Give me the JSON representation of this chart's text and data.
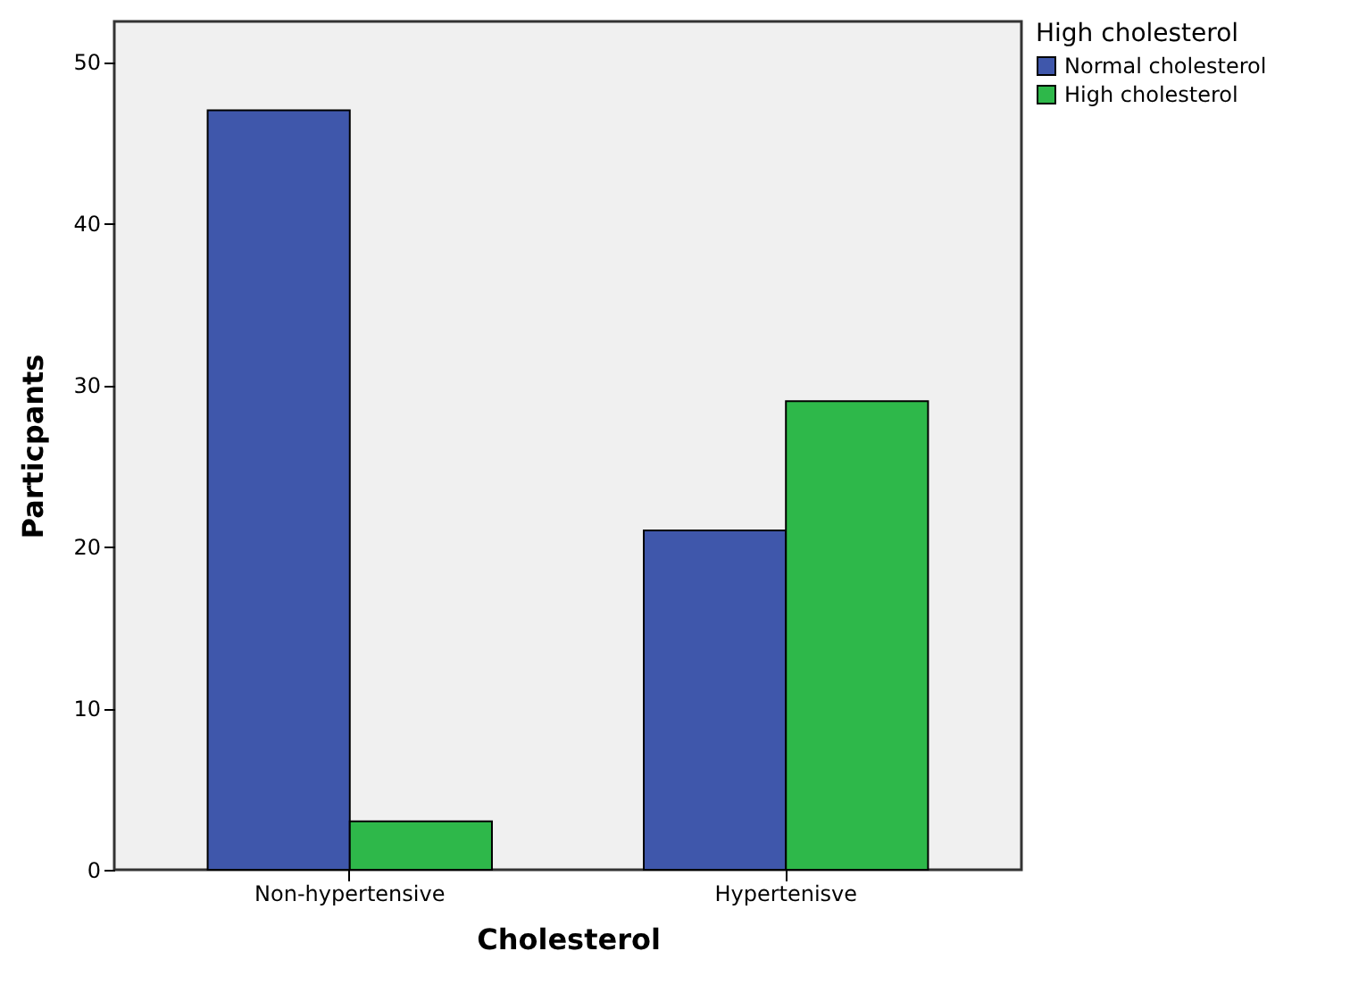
{
  "chart_data": {
    "type": "bar",
    "xlabel": "Cholesterol",
    "ylabel": "Particpants",
    "legend_title": "High cholesterol",
    "categories": [
      "Non-hypertensive",
      "Hypertenisve"
    ],
    "series": [
      {
        "name": "Normal cholesterol",
        "color": "#3f57ab",
        "values": [
          47,
          21
        ]
      },
      {
        "name": "High cholesterol",
        "color": "#2eb84a",
        "values": [
          3,
          29
        ]
      }
    ],
    "ylim": [
      0,
      52.5
    ],
    "yticks": [
      0,
      10,
      20,
      30,
      40,
      50
    ],
    "grid": false,
    "legend": "top right"
  }
}
